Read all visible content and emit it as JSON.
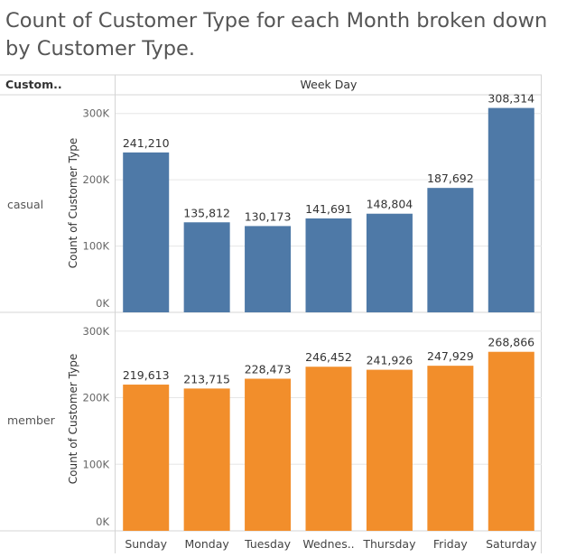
{
  "title": "Count of Customer Type for each Month broken down by Customer Type.",
  "header": {
    "row_field": "Custom..",
    "column_field": "Week Day"
  },
  "y_axis_title": "Count of Customer Type",
  "colors": {
    "casual": "#4e79a7",
    "member": "#f28e2b"
  },
  "chart_data": [
    {
      "type": "bar",
      "panel": "casual",
      "categories": [
        "Sunday",
        "Monday",
        "Tuesday",
        "Wednes..",
        "Thursday",
        "Friday",
        "Saturday"
      ],
      "values": [
        241210,
        135812,
        130173,
        141691,
        148804,
        187692,
        308314
      ],
      "value_labels": [
        "241,210",
        "135,812",
        "130,173",
        "141,691",
        "148,804",
        "187,692",
        "308,314"
      ],
      "ylabel": "Count of Customer Type",
      "yticks": [
        0,
        100000,
        200000,
        300000
      ],
      "ytick_labels": [
        "0K",
        "100K",
        "200K",
        "300K"
      ],
      "ylim": [
        0,
        320000
      ],
      "grid": true,
      "color": "#4e79a7"
    },
    {
      "type": "bar",
      "panel": "member",
      "categories": [
        "Sunday",
        "Monday",
        "Tuesday",
        "Wednes..",
        "Thursday",
        "Friday",
        "Saturday"
      ],
      "values": [
        219613,
        213715,
        228473,
        246452,
        241926,
        247929,
        268866
      ],
      "value_labels": [
        "219,613",
        "213,715",
        "228,473",
        "246,452",
        "241,926",
        "247,929",
        "268,866"
      ],
      "ylabel": "Count of Customer Type",
      "yticks": [
        0,
        100000,
        200000,
        300000
      ],
      "ytick_labels": [
        "0K",
        "100K",
        "200K",
        "300K"
      ],
      "ylim": [
        0,
        320000
      ],
      "grid": true,
      "color": "#f28e2b"
    }
  ]
}
